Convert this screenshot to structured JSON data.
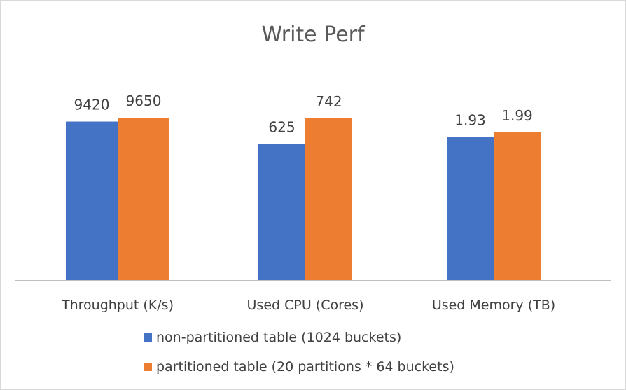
{
  "chart_data": {
    "type": "bar",
    "title": "Write Perf",
    "categories": [
      "Throughput (K/s)",
      "Used CPU (Cores)",
      "Used Memory (TB)"
    ],
    "series": [
      {
        "name": "non-partitioned table (1024 buckets)",
        "values": [
          9420,
          625,
          1.93
        ],
        "labels": [
          "9420",
          "625",
          "1.93"
        ],
        "color": "#4472c4"
      },
      {
        "name": "partitioned table (20 partitions * 64 buckets)",
        "values": [
          9650,
          742,
          1.99
        ],
        "labels": [
          "9650",
          "742",
          "1.99"
        ],
        "color": "#ed7d31"
      }
    ],
    "legend_position": "bottom",
    "grid": false
  }
}
